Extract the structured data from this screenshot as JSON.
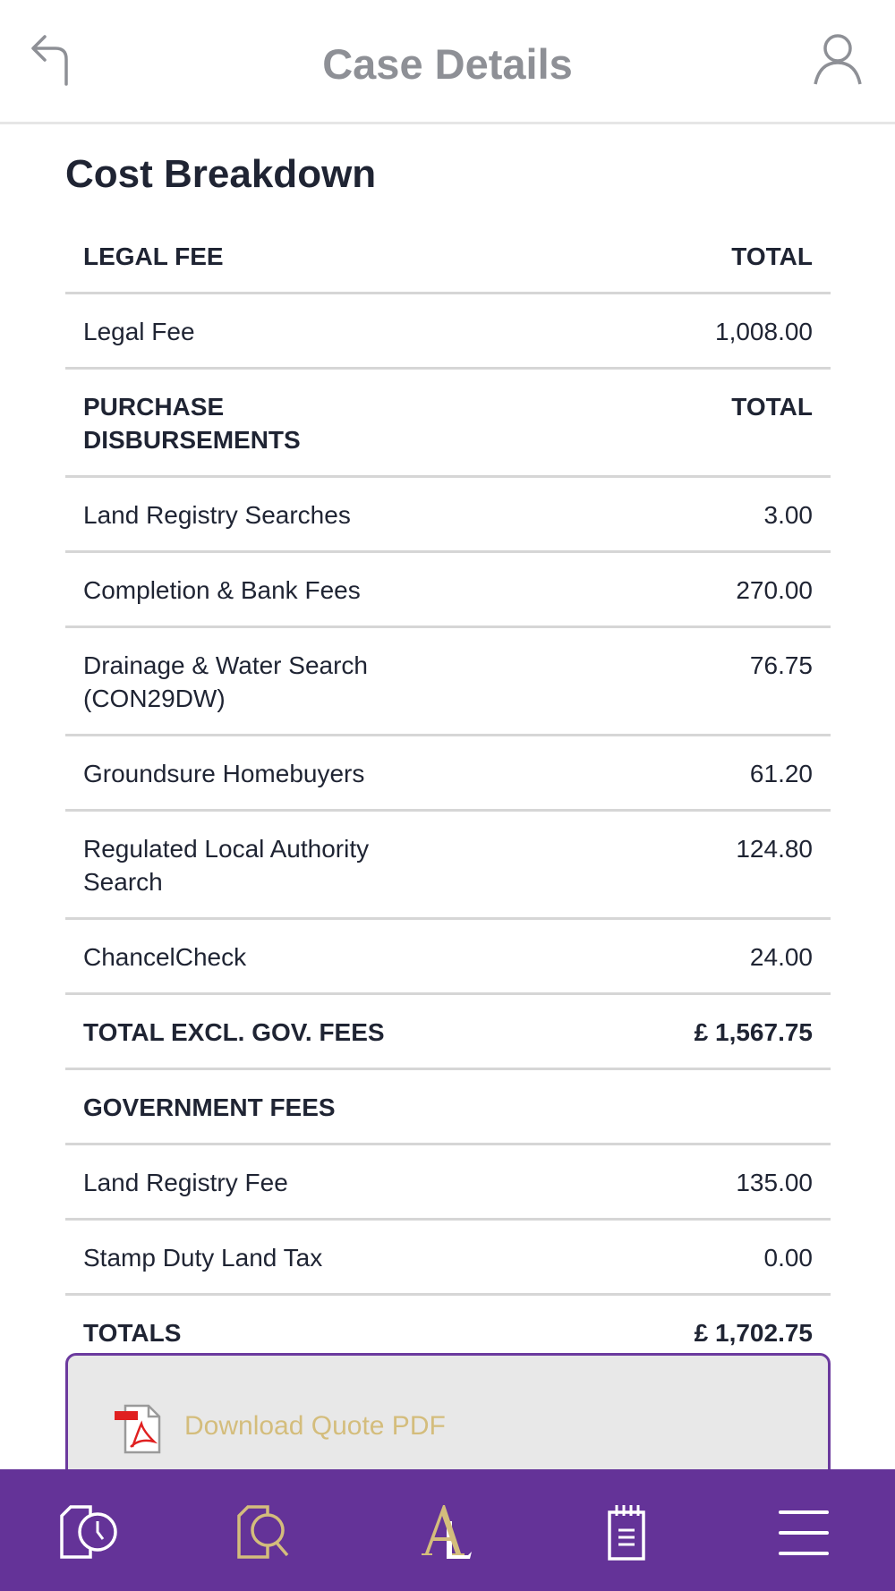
{
  "header": {
    "title": "Case Details",
    "back_icon": "back-arrow-icon",
    "user_icon": "user-icon"
  },
  "section_title": "Cost Breakdown",
  "rows": [
    {
      "label": "LEGAL FEE",
      "value": "TOTAL",
      "type": "header"
    },
    {
      "label": "Legal Fee",
      "value": "1,008.00"
    },
    {
      "label": "PURCHASE DISBURSEMENTS",
      "value": "TOTAL",
      "type": "header"
    },
    {
      "label": "Land Registry Searches",
      "value": "3.00"
    },
    {
      "label": "Completion & Bank Fees",
      "value": "270.00"
    },
    {
      "label": "Drainage & Water Search (CON29DW)",
      "value": "76.75"
    },
    {
      "label": "Groundsure Homebuyers",
      "value": "61.20"
    },
    {
      "label": "Regulated Local Authority Search",
      "value": "124.80"
    },
    {
      "label": "ChancelCheck",
      "value": "24.00"
    },
    {
      "label": "TOTAL EXCL. GOV. FEES",
      "value": "£ 1,567.75",
      "type": "header"
    },
    {
      "label": "GOVERNMENT FEES",
      "value": "",
      "type": "header"
    },
    {
      "label": "Land Registry Fee",
      "value": "135.00"
    },
    {
      "label": "Stamp Duty Land Tax",
      "value": "0.00"
    },
    {
      "label": "TOTALS",
      "value": "£ 1,702.75",
      "type": "header"
    }
  ],
  "download": {
    "label": "Download Quote PDF",
    "icon": "pdf-icon"
  },
  "nav": {
    "items": [
      "case-timeline-icon",
      "document-search-icon",
      "al-logo",
      "notepad-icon",
      "menu-icon"
    ],
    "logo_text": "AL"
  },
  "colors": {
    "nav_bg": "#643398",
    "accent_gold": "#d4bd7c",
    "text": "#1f2433"
  }
}
